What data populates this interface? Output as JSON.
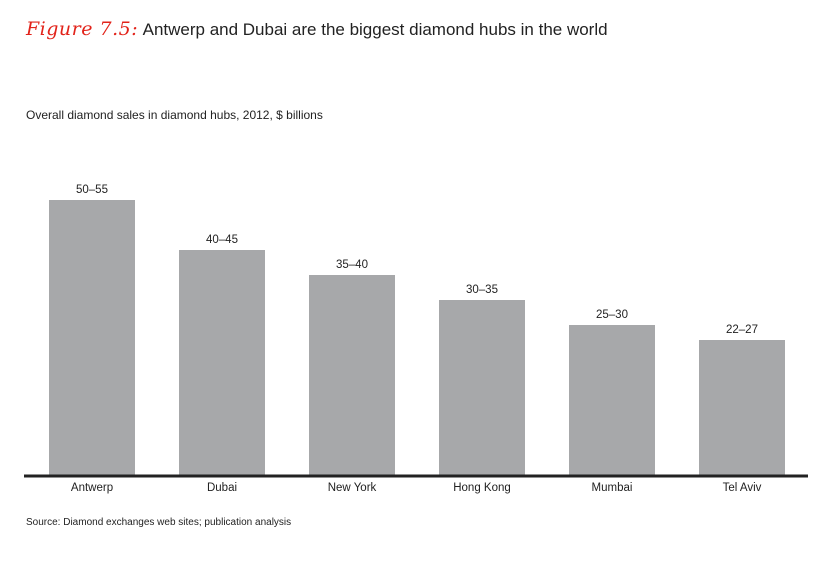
{
  "figure": {
    "number": "Figure 7.5:",
    "title": "Antwerp and Dubai are the biggest diamond hubs in the world"
  },
  "subtitle": "Overall diamond sales in diamond hubs, 2012, $ billions",
  "source": "Source:  Diamond exchanges web sites; publication analysis",
  "colors": {
    "bar": "#a7a8aa",
    "axis": "#222222",
    "accent": "#e2231a"
  },
  "chart_data": {
    "type": "bar",
    "categories": [
      "Antwerp",
      "Dubai",
      "New York",
      "Hong Kong",
      "Mumbai",
      "Tel Aviv"
    ],
    "value_labels": [
      "50–55",
      "40–45",
      "35–40",
      "30–35",
      "25–30",
      "22–27"
    ],
    "values": [
      55,
      45,
      40,
      35,
      30,
      27
    ],
    "ranges": [
      [
        50,
        55
      ],
      [
        40,
        45
      ],
      [
        35,
        40
      ],
      [
        30,
        35
      ],
      [
        25,
        30
      ],
      [
        22,
        27
      ]
    ],
    "ylim": [
      0,
      60
    ],
    "grid": false,
    "legend": "none"
  }
}
